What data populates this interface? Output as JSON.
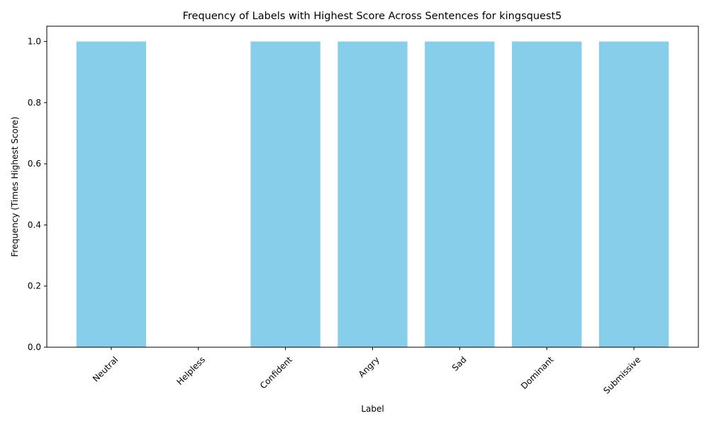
{
  "chart_data": {
    "type": "bar",
    "title": "Frequency of Labels with Highest Score Across Sentences for kingsquest5",
    "xlabel": "Label",
    "ylabel": "Frequency (Times Highest Score)",
    "categories": [
      "Neutral",
      "Helpless",
      "Confident",
      "Angry",
      "Sad",
      "Dominant",
      "Submissive"
    ],
    "values": [
      1,
      0,
      1,
      1,
      1,
      1,
      1
    ],
    "ylim": [
      0,
      1.05
    ],
    "yticks": [
      "0.0",
      "0.2",
      "0.4",
      "0.6",
      "0.8",
      "1.0"
    ],
    "bar_color": "#87ceeb",
    "grid": false,
    "legend": "none"
  }
}
